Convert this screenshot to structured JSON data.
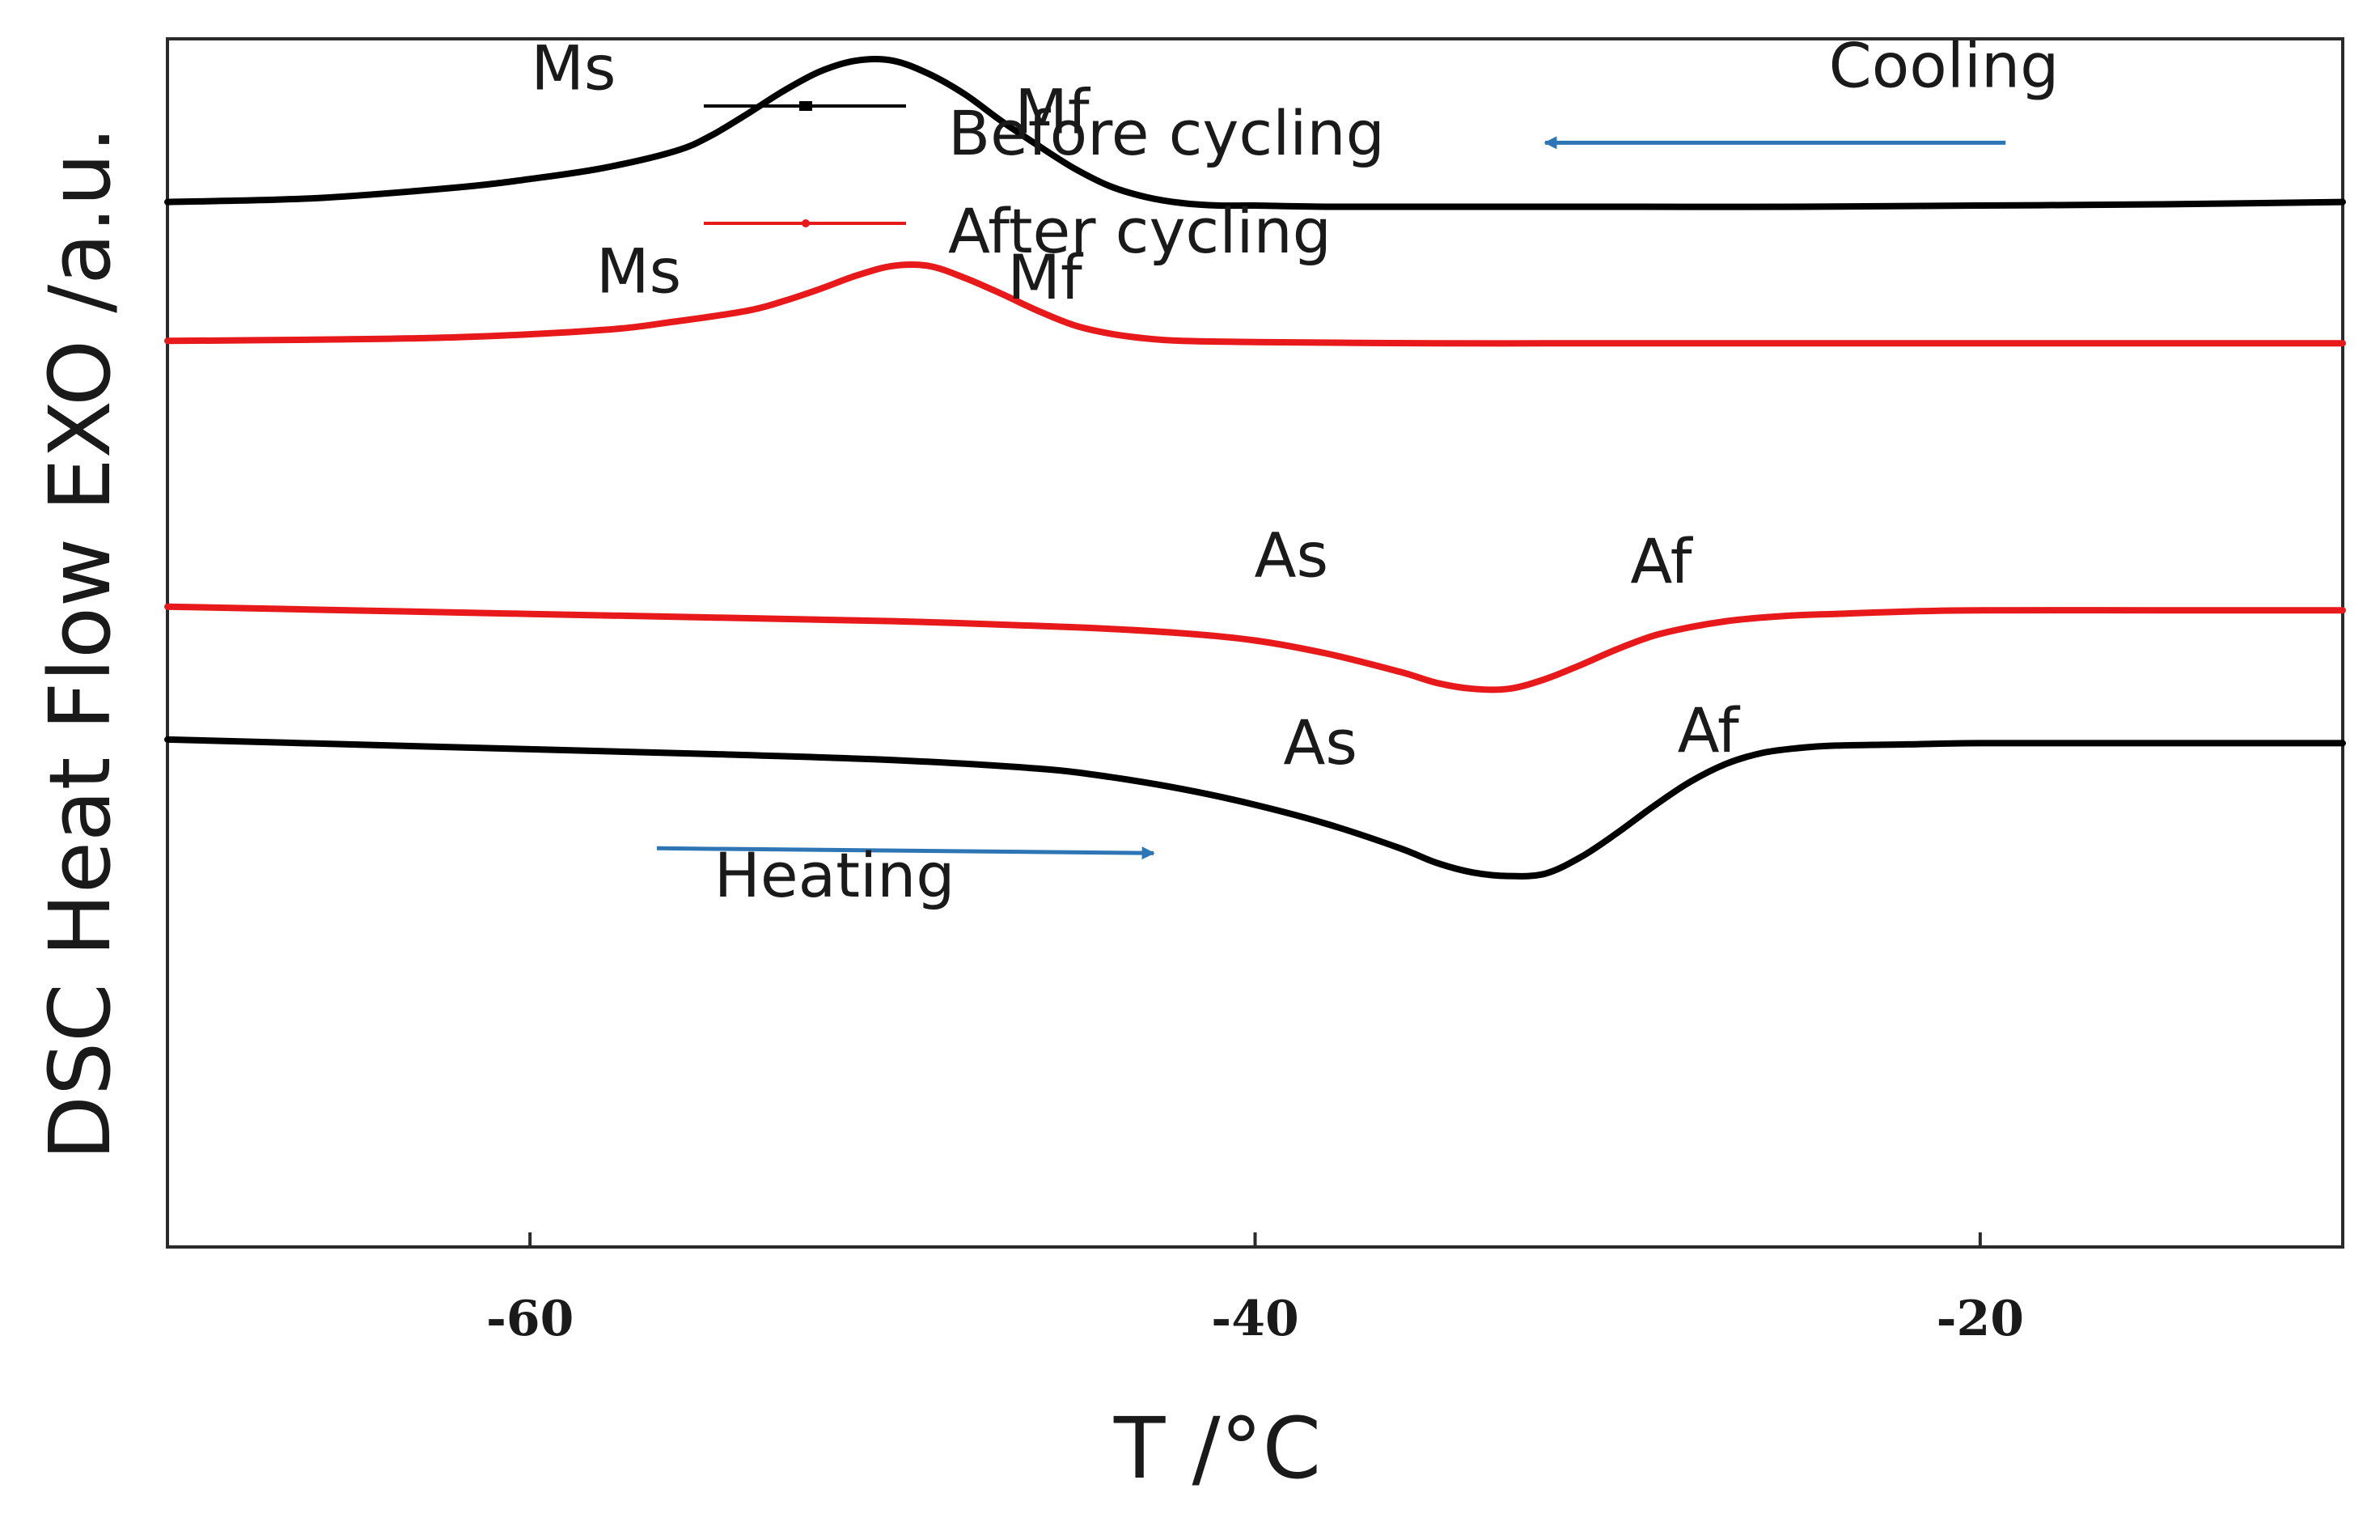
{
  "chart_data": {
    "type": "line",
    "title": "",
    "xlabel": "T  /°C",
    "ylabel": "DSC Heat Flow EXO /a.u.",
    "xlim": [
      -70,
      -10
    ],
    "ylim": [
      0,
      10
    ],
    "xticks": [
      {
        "value": -60,
        "label": "-60"
      },
      {
        "value": -40,
        "label": "-40"
      },
      {
        "value": -20,
        "label": "-20"
      }
    ],
    "grid": false,
    "legend": {
      "position": "top-left",
      "entries": [
        {
          "label": "Before cycling",
          "color": "#000000"
        },
        {
          "label": "After cycling",
          "color": "#e8191b"
        }
      ]
    },
    "series": [
      {
        "name": "Before cycling (cooling)",
        "color": "#000000",
        "x": [
          -70,
          -66,
          -62,
          -60,
          -58,
          -56,
          -55,
          -54,
          -53,
          -52,
          -51,
          -50,
          -49,
          -48,
          -47,
          -46,
          -45,
          -44,
          -43,
          -42,
          -41,
          -40,
          -38,
          -35,
          -30,
          -25,
          -20,
          -15,
          -10
        ],
        "y": [
          8.65,
          8.68,
          8.77,
          8.84,
          8.93,
          9.07,
          9.2,
          9.38,
          9.57,
          9.73,
          9.82,
          9.82,
          9.71,
          9.54,
          9.32,
          9.12,
          8.93,
          8.78,
          8.69,
          8.64,
          8.62,
          8.62,
          8.61,
          8.61,
          8.61,
          8.61,
          8.62,
          8.63,
          8.65
        ]
      },
      {
        "name": "After cycling (cooling)",
        "color": "#e8191b",
        "x": [
          -70,
          -66,
          -62,
          -58,
          -56,
          -54,
          -53,
          -52,
          -51,
          -50,
          -49,
          -48,
          -47,
          -46,
          -45,
          -44,
          -43,
          -42,
          -40,
          -35,
          -30,
          -25,
          -20,
          -15,
          -10
        ],
        "y": [
          7.5,
          7.51,
          7.53,
          7.59,
          7.66,
          7.75,
          7.83,
          7.93,
          8.04,
          8.12,
          8.12,
          8.02,
          7.89,
          7.75,
          7.63,
          7.56,
          7.52,
          7.5,
          7.49,
          7.48,
          7.48,
          7.48,
          7.48,
          7.48,
          7.48
        ]
      },
      {
        "name": "After cycling (heating)",
        "color": "#e8191b",
        "x": [
          -70,
          -65,
          -60,
          -55,
          -50,
          -45,
          -42,
          -40,
          -38,
          -36,
          -35,
          -34,
          -33,
          -32,
          -31,
          -30,
          -29,
          -28,
          -27,
          -26,
          -25,
          -24,
          -22,
          -20,
          -15,
          -10
        ],
        "y": [
          5.3,
          5.27,
          5.24,
          5.21,
          5.18,
          5.13,
          5.08,
          5.02,
          4.91,
          4.76,
          4.67,
          4.62,
          4.62,
          4.7,
          4.82,
          4.95,
          5.06,
          5.13,
          5.18,
          5.21,
          5.23,
          5.24,
          5.26,
          5.27,
          5.27,
          5.27
        ]
      },
      {
        "name": "Before cycling (heating)",
        "color": "#000000",
        "x": [
          -70,
          -65,
          -60,
          -55,
          -50,
          -46,
          -44,
          -42,
          -40,
          -38,
          -36,
          -35,
          -34,
          -33,
          -32,
          -31,
          -30,
          -29,
          -28,
          -27,
          -26,
          -25,
          -24,
          -22,
          -20,
          -15,
          -10
        ],
        "y": [
          4.2,
          4.16,
          4.12,
          4.08,
          4.03,
          3.96,
          3.89,
          3.79,
          3.66,
          3.5,
          3.3,
          3.18,
          3.1,
          3.07,
          3.09,
          3.23,
          3.43,
          3.65,
          3.85,
          4.0,
          4.09,
          4.13,
          4.15,
          4.16,
          4.17,
          4.17,
          4.17
        ]
      }
    ],
    "annotations": [
      {
        "text": "Ms",
        "x": -58.8,
        "y": 9.58
      },
      {
        "text": "Mf",
        "x": -45.6,
        "y": 9.22
      },
      {
        "text": "Ms",
        "x": -57,
        "y": 7.9
      },
      {
        "text": "Mf",
        "x": -45.8,
        "y": 7.85
      },
      {
        "text": "As",
        "x": -39,
        "y": 5.55
      },
      {
        "text": "Af",
        "x": -28.8,
        "y": 5.5
      },
      {
        "text": "As",
        "x": -38.2,
        "y": 4.0
      },
      {
        "text": "Af",
        "x": -27.5,
        "y": 4.1
      },
      {
        "text": "Cooling",
        "x": -21,
        "y": 9.6
      },
      {
        "text": "Heating",
        "x": -51.6,
        "y": 2.9
      }
    ],
    "arrows": [
      {
        "name": "Cooling",
        "direction": "left",
        "from": [
          -19.3,
          9.14
        ],
        "to": [
          -32,
          9.14
        ],
        "color": "#2e75b6"
      },
      {
        "name": "Heating",
        "direction": "right",
        "from": [
          -56.5,
          3.3
        ],
        "to": [
          -42.8,
          3.26
        ],
        "color": "#2e75b6"
      }
    ]
  }
}
